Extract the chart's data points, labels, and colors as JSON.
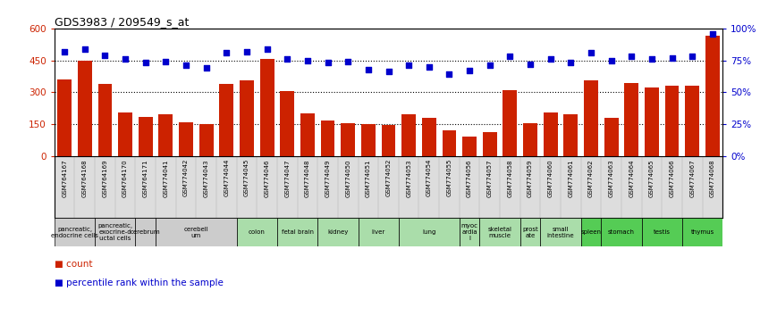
{
  "title": "GDS3983 / 209549_s_at",
  "gsm_labels": [
    "GSM764167",
    "GSM764168",
    "GSM764169",
    "GSM764170",
    "GSM764171",
    "GSM774041",
    "GSM774042",
    "GSM774043",
    "GSM774044",
    "GSM774045",
    "GSM774046",
    "GSM774047",
    "GSM774048",
    "GSM774049",
    "GSM774050",
    "GSM774051",
    "GSM774052",
    "GSM774053",
    "GSM774054",
    "GSM774055",
    "GSM774056",
    "GSM774057",
    "GSM774058",
    "GSM774059",
    "GSM774060",
    "GSM774061",
    "GSM774062",
    "GSM774063",
    "GSM774064",
    "GSM774065",
    "GSM774066",
    "GSM774067",
    "GSM774068"
  ],
  "counts": [
    360,
    450,
    340,
    205,
    185,
    195,
    160,
    150,
    340,
    355,
    455,
    305,
    200,
    165,
    155,
    150,
    145,
    195,
    180,
    120,
    90,
    110,
    310,
    155,
    205,
    195,
    355,
    180,
    345,
    320,
    330,
    330,
    565
  ],
  "percentiles": [
    82,
    84,
    79,
    76,
    73,
    74,
    71,
    69,
    81,
    82,
    84,
    76,
    75,
    73,
    74,
    68,
    66,
    71,
    70,
    64,
    67,
    71,
    78,
    72,
    76,
    73,
    81,
    75,
    78,
    76,
    77,
    78,
    96
  ],
  "bar_color": "#cc2200",
  "dot_color": "#0000cc",
  "ylim_left": [
    0,
    600
  ],
  "ylim_right": [
    0,
    100
  ],
  "yticks_left": [
    0,
    150,
    300,
    450,
    600
  ],
  "yticks_right": [
    0,
    25,
    50,
    75,
    100
  ],
  "tissue_groups": [
    {
      "label": "pancreatic,\nendocrine cells",
      "start": 0,
      "end": 2,
      "color": "#cccccc"
    },
    {
      "label": "pancreatic,\nexocrine-d\nuctal cells",
      "start": 2,
      "end": 4,
      "color": "#cccccc"
    },
    {
      "label": "cerebrum",
      "start": 4,
      "end": 5,
      "color": "#cccccc"
    },
    {
      "label": "cerebell\num",
      "start": 5,
      "end": 9,
      "color": "#cccccc"
    },
    {
      "label": "colon",
      "start": 9,
      "end": 11,
      "color": "#aaddaa"
    },
    {
      "label": "fetal brain",
      "start": 11,
      "end": 13,
      "color": "#aaddaa"
    },
    {
      "label": "kidney",
      "start": 13,
      "end": 15,
      "color": "#aaddaa"
    },
    {
      "label": "liver",
      "start": 15,
      "end": 17,
      "color": "#aaddaa"
    },
    {
      "label": "lung",
      "start": 17,
      "end": 20,
      "color": "#aaddaa"
    },
    {
      "label": "myoc\nardia\nl",
      "start": 20,
      "end": 21,
      "color": "#aaddaa"
    },
    {
      "label": "skeletal\nmuscle",
      "start": 21,
      "end": 23,
      "color": "#aaddaa"
    },
    {
      "label": "prost\nate",
      "start": 23,
      "end": 24,
      "color": "#aaddaa"
    },
    {
      "label": "small\nintestine",
      "start": 24,
      "end": 26,
      "color": "#aaddaa"
    },
    {
      "label": "spleen",
      "start": 26,
      "end": 27,
      "color": "#55cc55"
    },
    {
      "label": "stomach",
      "start": 27,
      "end": 29,
      "color": "#55cc55"
    },
    {
      "label": "testis",
      "start": 29,
      "end": 31,
      "color": "#55cc55"
    },
    {
      "label": "thymus",
      "start": 31,
      "end": 33,
      "color": "#55cc55"
    }
  ],
  "bg_color": "white",
  "dotted_line_values": [
    150,
    300,
    450
  ]
}
